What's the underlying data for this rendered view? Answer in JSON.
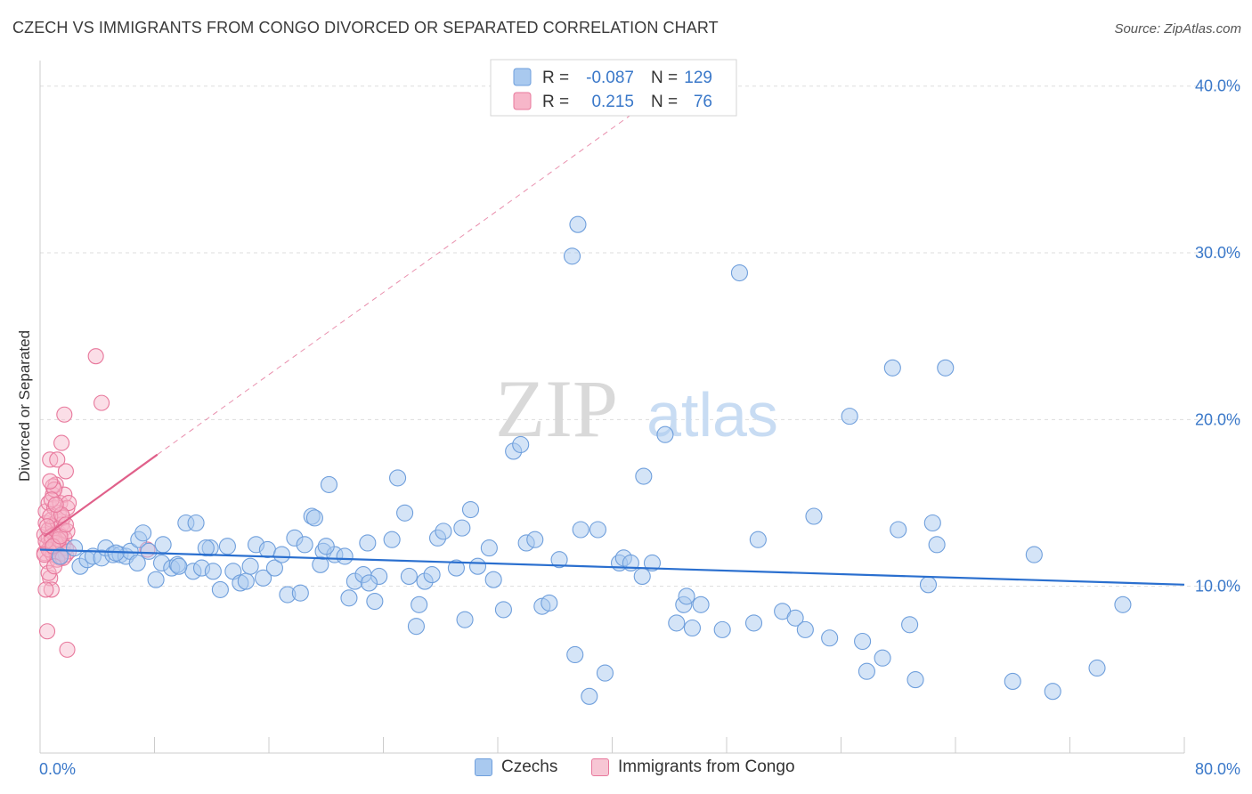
{
  "header": {
    "title": "CZECH VS IMMIGRANTS FROM CONGO DIVORCED OR SEPARATED CORRELATION CHART",
    "source": "Source: ZipAtlas.com"
  },
  "watermark": {
    "zip": "ZIP",
    "atlas": "atlas"
  },
  "legend": {
    "rows": [
      {
        "r_label": "R =",
        "r_value": "-0.087",
        "n_label": "N =",
        "n_value": "129"
      },
      {
        "r_label": "R =",
        "r_value": "0.215",
        "n_label": "N =",
        "n_value": "76"
      }
    ]
  },
  "bottom_legend": {
    "czech": "Czechs",
    "congo": "Immigrants from Congo"
  },
  "colors": {
    "czech_fill": "#a9c9ef",
    "czech_stroke": "#6f9fdc",
    "czech_line": "#2a6fcf",
    "congo_fill": "#f7b6c9",
    "congo_stroke": "#e8789c",
    "congo_line": "#e0608a",
    "tick_text": "#3a78c9",
    "grid": "#dddddd"
  },
  "chart_data": {
    "type": "scatter",
    "title": "CZECH VS IMMIGRANTS FROM CONGO DIVORCED OR SEPARATED CORRELATION CHART",
    "xlabel": "",
    "ylabel": "Divorced or Separated",
    "xlim": [
      0,
      80
    ],
    "ylim": [
      0,
      41
    ],
    "x_tick_labels": [
      "0.0%",
      "80.0%"
    ],
    "y_ticks": [
      10,
      20,
      30,
      40
    ],
    "y_tick_labels": [
      "10.0%",
      "20.0%",
      "30.0%",
      "40.0%"
    ],
    "series": [
      {
        "name": "Czechs",
        "R": -0.087,
        "N": 129,
        "trend": {
          "x": [
            0,
            80
          ],
          "y": [
            12.2,
            10.1
          ]
        },
        "points": [
          [
            1.4,
            11.8
          ],
          [
            2.4,
            12.3
          ],
          [
            2.8,
            11.2
          ],
          [
            3.3,
            11.6
          ],
          [
            3.7,
            11.8
          ],
          [
            4.3,
            11.7
          ],
          [
            4.6,
            12.3
          ],
          [
            5.1,
            11.9
          ],
          [
            5.6,
            11.9
          ],
          [
            6.0,
            11.8
          ],
          [
            6.3,
            12.1
          ],
          [
            6.8,
            11.4
          ],
          [
            6.9,
            12.8
          ],
          [
            7.2,
            13.2
          ],
          [
            7.6,
            12.1
          ],
          [
            8.1,
            10.4
          ],
          [
            8.5,
            11.4
          ],
          [
            8.6,
            12.5
          ],
          [
            9.2,
            11.1
          ],
          [
            9.6,
            11.3
          ],
          [
            10.2,
            13.8
          ],
          [
            10.7,
            10.9
          ],
          [
            10.9,
            13.8
          ],
          [
            11.3,
            11.1
          ],
          [
            11.9,
            12.3
          ],
          [
            12.1,
            10.9
          ],
          [
            12.6,
            9.8
          ],
          [
            13.1,
            12.4
          ],
          [
            13.5,
            10.9
          ],
          [
            14.0,
            10.2
          ],
          [
            14.4,
            10.3
          ],
          [
            14.7,
            11.2
          ],
          [
            15.1,
            12.5
          ],
          [
            15.6,
            10.5
          ],
          [
            15.9,
            12.2
          ],
          [
            16.4,
            11.1
          ],
          [
            16.9,
            11.9
          ],
          [
            17.3,
            9.5
          ],
          [
            17.8,
            12.9
          ],
          [
            18.2,
            9.6
          ],
          [
            18.5,
            12.5
          ],
          [
            19.0,
            14.2
          ],
          [
            19.2,
            14.1
          ],
          [
            19.6,
            11.3
          ],
          [
            19.8,
            12.1
          ],
          [
            20.2,
            16.1
          ],
          [
            20.6,
            11.9
          ],
          [
            21.3,
            11.8
          ],
          [
            21.6,
            9.3
          ],
          [
            22.0,
            10.3
          ],
          [
            22.6,
            10.7
          ],
          [
            22.9,
            12.6
          ],
          [
            23.4,
            9.1
          ],
          [
            23.7,
            10.6
          ],
          [
            24.6,
            12.8
          ],
          [
            25.0,
            16.5
          ],
          [
            25.5,
            14.4
          ],
          [
            25.8,
            10.6
          ],
          [
            26.3,
            7.6
          ],
          [
            26.5,
            8.9
          ],
          [
            26.9,
            10.3
          ],
          [
            27.4,
            10.7
          ],
          [
            27.8,
            12.9
          ],
          [
            28.2,
            13.3
          ],
          [
            29.1,
            11.1
          ],
          [
            29.5,
            13.5
          ],
          [
            29.7,
            8.0
          ],
          [
            30.1,
            14.6
          ],
          [
            30.6,
            11.2
          ],
          [
            31.4,
            12.3
          ],
          [
            31.7,
            10.4
          ],
          [
            32.4,
            8.6
          ],
          [
            33.1,
            18.1
          ],
          [
            33.6,
            18.5
          ],
          [
            34.0,
            12.6
          ],
          [
            35.1,
            8.8
          ],
          [
            35.6,
            9.0
          ],
          [
            36.3,
            11.6
          ],
          [
            37.4,
            5.9
          ],
          [
            37.8,
            13.4
          ],
          [
            37.2,
            29.8
          ],
          [
            37.6,
            31.7
          ],
          [
            38.4,
            3.4
          ],
          [
            39.0,
            13.4
          ],
          [
            39.5,
            4.8
          ],
          [
            40.5,
            11.4
          ],
          [
            40.8,
            11.7
          ],
          [
            41.3,
            11.4
          ],
          [
            42.1,
            10.6
          ],
          [
            42.2,
            16.6
          ],
          [
            42.8,
            11.4
          ],
          [
            43.7,
            19.1
          ],
          [
            44.5,
            7.8
          ],
          [
            45.0,
            8.9
          ],
          [
            45.2,
            9.4
          ],
          [
            45.6,
            7.5
          ],
          [
            46.2,
            8.9
          ],
          [
            47.7,
            7.4
          ],
          [
            48.9,
            28.8
          ],
          [
            49.9,
            7.8
          ],
          [
            50.2,
            12.8
          ],
          [
            51.9,
            8.5
          ],
          [
            52.8,
            8.1
          ],
          [
            53.5,
            7.4
          ],
          [
            54.1,
            14.2
          ],
          [
            55.2,
            6.9
          ],
          [
            56.6,
            20.2
          ],
          [
            57.5,
            6.7
          ],
          [
            57.8,
            4.9
          ],
          [
            58.9,
            5.7
          ],
          [
            59.6,
            23.1
          ],
          [
            60.0,
            13.4
          ],
          [
            60.8,
            7.7
          ],
          [
            61.2,
            4.4
          ],
          [
            62.1,
            10.1
          ],
          [
            62.4,
            13.8
          ],
          [
            62.7,
            12.5
          ],
          [
            63.3,
            23.1
          ],
          [
            68.0,
            4.3
          ],
          [
            69.5,
            11.9
          ],
          [
            70.8,
            3.7
          ],
          [
            73.9,
            5.1
          ],
          [
            75.7,
            8.9
          ],
          [
            20.0,
            12.4
          ],
          [
            11.6,
            12.3
          ],
          [
            23.0,
            10.2
          ],
          [
            34.6,
            12.8
          ],
          [
            5.3,
            12.0
          ],
          [
            9.7,
            11.2
          ]
        ]
      },
      {
        "name": "Immigrants from Congo",
        "R": 0.215,
        "N": 76,
        "trend": {
          "x": [
            0.3,
            8.2
          ],
          "y": [
            13.0,
            17.9
          ]
        },
        "trend_extension": {
          "x": [
            8.2,
            42.0
          ],
          "y": [
            17.9,
            38.7
          ]
        },
        "points": [
          [
            0.3,
            12.0
          ],
          [
            0.3,
            13.1
          ],
          [
            0.4,
            13.8
          ],
          [
            0.4,
            14.5
          ],
          [
            0.5,
            12.5
          ],
          [
            0.5,
            11.5
          ],
          [
            0.6,
            12.9
          ],
          [
            0.6,
            15.0
          ],
          [
            0.6,
            13.4
          ],
          [
            0.7,
            12.2
          ],
          [
            0.7,
            17.6
          ],
          [
            0.7,
            10.5
          ],
          [
            0.8,
            14.0
          ],
          [
            0.8,
            12.7
          ],
          [
            0.8,
            9.8
          ],
          [
            0.9,
            13.6
          ],
          [
            0.9,
            11.9
          ],
          [
            0.9,
            15.5
          ],
          [
            1.0,
            12.4
          ],
          [
            1.0,
            13.1
          ],
          [
            1.0,
            14.7
          ],
          [
            1.1,
            12.8
          ],
          [
            1.1,
            16.1
          ],
          [
            1.1,
            12.1
          ],
          [
            1.2,
            13.9
          ],
          [
            1.2,
            11.8
          ],
          [
            1.2,
            17.6
          ],
          [
            1.3,
            12.6
          ],
          [
            1.3,
            14.4
          ],
          [
            1.3,
            13.2
          ],
          [
            1.4,
            15.0
          ],
          [
            1.4,
            12.3
          ],
          [
            1.4,
            11.7
          ],
          [
            1.5,
            13.7
          ],
          [
            1.5,
            18.6
          ],
          [
            1.5,
            12.0
          ],
          [
            1.6,
            14.1
          ],
          [
            1.6,
            13.4
          ],
          [
            1.6,
            12.5
          ],
          [
            1.7,
            20.3
          ],
          [
            1.7,
            15.5
          ],
          [
            1.7,
            12.9
          ],
          [
            1.8,
            11.9
          ],
          [
            1.8,
            16.9
          ],
          [
            1.8,
            12.3
          ],
          [
            1.9,
            13.3
          ],
          [
            1.9,
            14.7
          ],
          [
            1.9,
            6.2
          ],
          [
            2.0,
            12.1
          ],
          [
            2.0,
            15.0
          ],
          [
            0.5,
            7.3
          ],
          [
            0.4,
            9.8
          ],
          [
            0.6,
            10.8
          ],
          [
            0.9,
            16.0
          ],
          [
            1.0,
            15.8
          ],
          [
            0.7,
            14.2
          ],
          [
            0.8,
            13.0
          ],
          [
            1.1,
            12.6
          ],
          [
            0.6,
            12.2
          ],
          [
            0.5,
            13.6
          ],
          [
            1.2,
            11.6
          ],
          [
            1.3,
            12.8
          ],
          [
            0.4,
            12.7
          ],
          [
            0.3,
            11.9
          ],
          [
            0.9,
            12.4
          ],
          [
            1.4,
            13.0
          ],
          [
            1.5,
            14.3
          ],
          [
            0.8,
            15.2
          ],
          [
            1.6,
            11.7
          ],
          [
            1.1,
            14.9
          ],
          [
            3.9,
            23.8
          ],
          [
            4.3,
            21.0
          ],
          [
            7.5,
            12.2
          ],
          [
            0.7,
            16.3
          ],
          [
            1.0,
            11.2
          ],
          [
            1.8,
            13.7
          ]
        ]
      }
    ]
  }
}
